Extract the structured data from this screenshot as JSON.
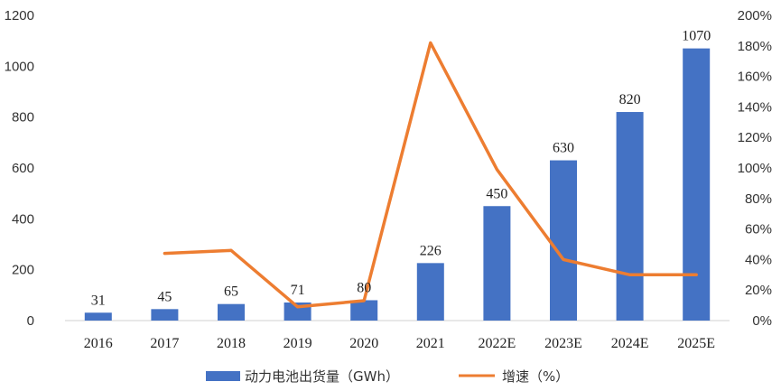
{
  "chart_data": {
    "type": "bar",
    "categories": [
      "2016",
      "2017",
      "2018",
      "2019",
      "2020",
      "2021",
      "2022E",
      "2023E",
      "2024E",
      "2025E"
    ],
    "series": [
      {
        "name": "动力电池出货量（GWh）",
        "type": "bar",
        "axis": "left",
        "color": "#4472C4",
        "values": [
          31,
          45,
          65,
          71,
          80,
          226,
          450,
          630,
          820,
          1070
        ]
      },
      {
        "name": "增速（%）",
        "type": "line",
        "axis": "right",
        "color": "#ED7D31",
        "values": [
          null,
          44,
          46,
          9,
          13,
          182,
          99,
          40,
          30,
          30
        ]
      }
    ],
    "ylim_left": [
      0,
      1200
    ],
    "yticks_left": [
      "0",
      "200",
      "400",
      "600",
      "800",
      "1000",
      "1200"
    ],
    "ylim_right": [
      0,
      200
    ],
    "yticks_right": [
      "0%",
      "20%",
      "40%",
      "60%",
      "80%",
      "100%",
      "120%",
      "140%",
      "160%",
      "180%",
      "200%"
    ],
    "grid": false,
    "legend_position": "bottom"
  }
}
